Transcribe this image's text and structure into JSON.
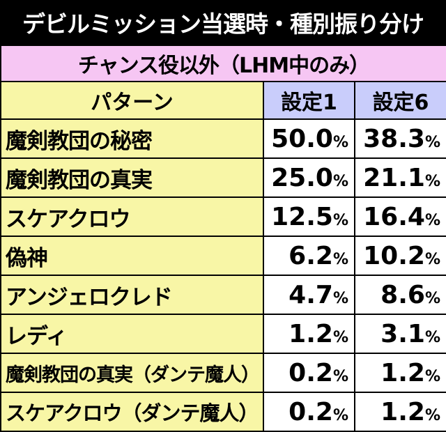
{
  "title": "デビルミッション当選時・種別振り分け",
  "subtitle": "チャンス役以外（LHM中のみ）",
  "columns": {
    "pattern": "パターン",
    "setting1": "設定1",
    "setting6": "設定6"
  },
  "unit": "%",
  "rows": [
    {
      "name": "魔剣教団の秘密",
      "s1": "50.0",
      "s6": "38.3"
    },
    {
      "name": "魔剣教団の真実",
      "s1": "25.0",
      "s6": "21.1"
    },
    {
      "name": "スケアクロウ",
      "s1": "12.5",
      "s6": "16.4"
    },
    {
      "name": "偽神",
      "s1": "6.2",
      "s6": "10.2"
    },
    {
      "name": "アンジェロクレド",
      "s1": "4.7",
      "s6": "8.6"
    },
    {
      "name": "レディ",
      "s1": "1.2",
      "s6": "3.1"
    },
    {
      "name": "魔剣教団の真実（ダンテ魔人）",
      "s1": "0.2",
      "s6": "1.2"
    },
    {
      "name": "スケアクロウ（ダンテ魔人）",
      "s1": "0.2",
      "s6": "1.2"
    }
  ]
}
